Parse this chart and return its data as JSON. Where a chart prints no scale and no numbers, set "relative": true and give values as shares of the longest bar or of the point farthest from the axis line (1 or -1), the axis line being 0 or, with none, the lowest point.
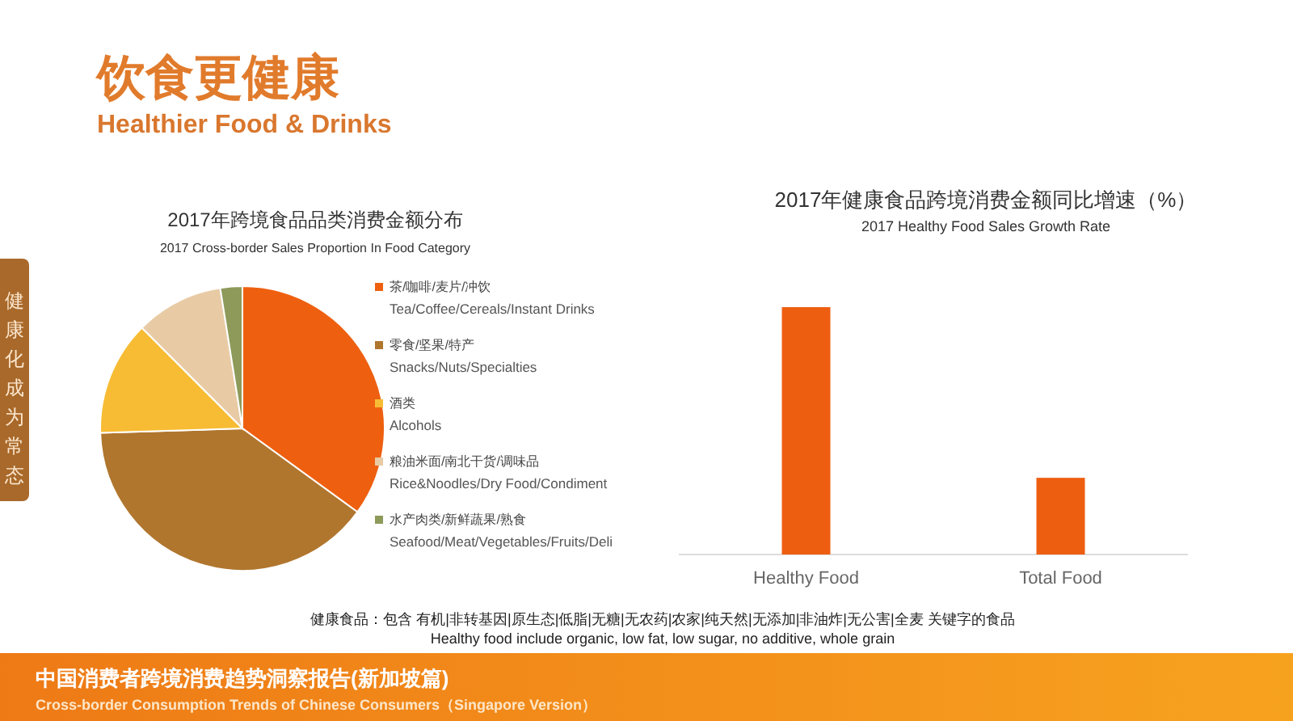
{
  "chart_data": [
    {
      "type": "other",
      "title": "饮食更健康",
      "subtitle": "Healthier Food & Drinks",
      "annotations": [
        "健康化成为常态",
        "健康食品：包含 有机|非转基因|原生态|低脂|无糖|无农药|农家|纯天然|无添加|非油炸|无公害|全麦 关键字的食品",
        "Healthy food include organic, low fat, low sugar, no additive, whole grain",
        "中国消费者跨境消费趋势洞察报告(新加坡篇)",
        "Cross-border Consumption Trends of Chinese Consumers（Singapore Version）"
      ]
    },
    {
      "type": "pie",
      "title": "2017年跨境食品品类消费金额分布",
      "subtitle": "2017 Cross-border Sales Proportion In Food Category",
      "categories": [
        "茶/咖啡/麦片/冲饮\nTea/Coffee/Cereals/Instant Drinks",
        "零食/坚果/特产\nSnacks/Nuts/Specialties",
        "酒类\nAlcohols",
        "粮油米面/南北干货/调味品\nRice&Noodles/Dry Food/Condiment",
        "水产肉类/新鲜蔬果/熟食\nSeafood/Meat/Vegetables/Fruits/Deli"
      ],
      "values": [
        35,
        39.5,
        13,
        10,
        2.5
      ],
      "colors": [
        "#ee6010",
        "#b0762e",
        "#f7bc34",
        "#e8cba5",
        "#8d9a5a"
      ],
      "legend": "right"
    },
    {
      "type": "bar",
      "title": "2017年健康食品跨境消费金额同比增速（%）",
      "subtitle": "2017 Healthy Food Sales Growth Rate",
      "categories": [
        "Healthy Food",
        "Total Food"
      ],
      "values": [
        1,
        0.31
      ],
      "color": "#ee5e10",
      "relative": true
    }
  ]
}
